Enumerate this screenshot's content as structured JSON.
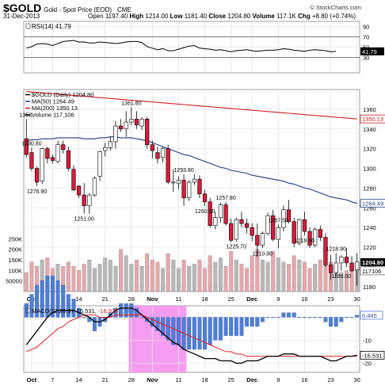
{
  "header": {
    "symbol": "$GOLD",
    "description": "Gold - Spot Price (EOD)",
    "exchange": "CME",
    "credit": "© StockCharts.com",
    "date": "31-Dec-2013",
    "open_label": "Open",
    "open": "1197.40",
    "high_label": "High",
    "high": "1214.00",
    "low_label": "Low",
    "low": "1181.40",
    "close_label": "Close",
    "close": "1204.80",
    "volume_label": "Volume",
    "volume": "117.1K",
    "chg_label": "Chg",
    "chg": "+8.80 (+0.74%)"
  },
  "colors": {
    "up_candle": "#ffffff",
    "down_candle": "#d81b3c",
    "candle_edge": "#000000",
    "ma50": "#1f3c88",
    "ma200": "#cc1f1f",
    "vol_up": "#b8b8b8",
    "vol_down": "#e6a7ad",
    "rsi_line": "#000000",
    "macd_line": "#000000",
    "signal_line": "#e02020",
    "histogram": "#4f7fd6",
    "highlight": "#f48cf0",
    "last_badge": "#000000"
  },
  "chart_data": [
    {
      "type": "line",
      "panel": "rsi",
      "legend": "RSI(14) 41.79",
      "ylim": [
        0,
        100
      ],
      "y_ticks": [
        30,
        50,
        70,
        90
      ],
      "reference_lines": [
        30,
        70
      ],
      "last_value_label": "41.79",
      "values": [
        48,
        51,
        56,
        57,
        56,
        53,
        57,
        61,
        62,
        63,
        60,
        60,
        58,
        58,
        60,
        59,
        58,
        57,
        58,
        60,
        61,
        61,
        59,
        51,
        48,
        45,
        47,
        43,
        43,
        46,
        49,
        52,
        53,
        48,
        47,
        46,
        44,
        45,
        43,
        41,
        43,
        44,
        45,
        43,
        42,
        43,
        44,
        44,
        45,
        47,
        46,
        44,
        43,
        42,
        44,
        45,
        44,
        43,
        41,
        42
      ]
    },
    {
      "type": "candlestick",
      "panel": "price",
      "legend": [
        "$GOLD (Daily) 1204.80",
        "MA(50) 1264.49",
        "MA(200) 1350.13",
        "Volume 117,106"
      ],
      "ylim": [
        1175,
        1380
      ],
      "y_ticks": [
        1180,
        1200,
        1220,
        1240,
        1260,
        1280,
        1300,
        1320,
        1340,
        1360
      ],
      "x_ticks": [
        "Oct",
        "7",
        "14",
        "21",
        "28",
        "Nov",
        "11",
        "18",
        "25",
        "Dec",
        "9",
        "16",
        "23",
        "30"
      ],
      "x_tick_index": [
        1,
        5,
        10,
        15,
        20,
        24,
        29,
        34,
        39,
        43,
        48,
        53,
        58,
        63
      ],
      "ohlc": [
        [
          1330,
          1350,
          1311,
          1314
        ],
        [
          1316,
          1321,
          1297,
          1300
        ],
        [
          1300,
          1302,
          1282,
          1286
        ],
        [
          1287,
          1321,
          1284,
          1320
        ],
        [
          1320,
          1322,
          1305,
          1310
        ],
        [
          1311,
          1314,
          1305,
          1308
        ],
        [
          1307,
          1328,
          1305,
          1324
        ],
        [
          1324,
          1328,
          1315,
          1319
        ],
        [
          1318,
          1322,
          1297,
          1300
        ],
        [
          1299,
          1303,
          1277,
          1278
        ],
        [
          1282,
          1283,
          1270,
          1273
        ],
        [
          1273,
          1285,
          1254,
          1262
        ],
        [
          1262,
          1275,
          1254,
          1273
        ],
        [
          1273,
          1292,
          1271,
          1290
        ],
        [
          1292,
          1318,
          1287,
          1317
        ],
        [
          1318,
          1326,
          1312,
          1321
        ],
        [
          1321,
          1332,
          1318,
          1327
        ],
        [
          1327,
          1348,
          1320,
          1343
        ],
        [
          1343,
          1350,
          1337,
          1340
        ],
        [
          1340,
          1358,
          1332,
          1347
        ],
        [
          1347,
          1362,
          1344,
          1350
        ],
        [
          1350,
          1358,
          1340,
          1344
        ],
        [
          1343,
          1352,
          1339,
          1350
        ],
        [
          1350,
          1352,
          1320,
          1324
        ],
        [
          1324,
          1328,
          1310,
          1318
        ],
        [
          1316,
          1322,
          1305,
          1310
        ],
        [
          1311,
          1322,
          1306,
          1320
        ],
        [
          1320,
          1324,
          1284,
          1286
        ],
        [
          1286,
          1299,
          1276,
          1286
        ],
        [
          1285,
          1292,
          1279,
          1288
        ],
        [
          1288,
          1294,
          1262,
          1270
        ],
        [
          1270,
          1288,
          1267,
          1286
        ],
        [
          1286,
          1294,
          1283,
          1289
        ],
        [
          1289,
          1293,
          1270,
          1274
        ],
        [
          1274,
          1278,
          1262,
          1266
        ],
        [
          1266,
          1270,
          1240,
          1242
        ],
        [
          1242,
          1256,
          1238,
          1250
        ],
        [
          1250,
          1265,
          1245,
          1263
        ],
        [
          1263,
          1266,
          1242,
          1244
        ],
        [
          1244,
          1249,
          1225,
          1227
        ],
        [
          1228,
          1250,
          1226,
          1248
        ],
        [
          1248,
          1256,
          1240,
          1244
        ],
        [
          1244,
          1249,
          1234,
          1240
        ],
        [
          1240,
          1244,
          1226,
          1232
        ],
        [
          1232,
          1244,
          1210,
          1222
        ],
        [
          1222,
          1236,
          1219,
          1234
        ],
        [
          1234,
          1255,
          1232,
          1252
        ],
        [
          1252,
          1258,
          1226,
          1228
        ],
        [
          1228,
          1243,
          1219,
          1240
        ],
        [
          1240,
          1262,
          1236,
          1258
        ],
        [
          1258,
          1268,
          1244,
          1246
        ],
        [
          1246,
          1250,
          1220,
          1224
        ],
        [
          1224,
          1249,
          1222,
          1248
        ],
        [
          1248,
          1256,
          1232,
          1236
        ],
        [
          1236,
          1240,
          1219,
          1222
        ],
        [
          1222,
          1240,
          1220,
          1238
        ],
        [
          1238,
          1242,
          1226,
          1230
        ],
        [
          1230,
          1234,
          1200,
          1202
        ],
        [
          1202,
          1212,
          1187,
          1194
        ],
        [
          1194,
          1214,
          1190,
          1204
        ],
        [
          1204,
          1212,
          1196,
          1210
        ],
        [
          1210,
          1219,
          1200,
          1204
        ],
        [
          1204,
          1211,
          1195,
          1196
        ],
        [
          1197,
          1214,
          1181,
          1205
        ]
      ],
      "ma50": [
        1328,
        1329,
        1329,
        1330,
        1330,
        1330,
        1331,
        1331,
        1331,
        1331,
        1331,
        1330,
        1330,
        1330,
        1331,
        1331,
        1332,
        1332,
        1331,
        1331,
        1331,
        1330,
        1329,
        1328,
        1326,
        1324,
        1322,
        1320,
        1318,
        1316,
        1314,
        1313,
        1311,
        1309,
        1307,
        1305,
        1303,
        1301,
        1300,
        1298,
        1297,
        1296,
        1295,
        1293,
        1292,
        1291,
        1290,
        1289,
        1288,
        1287,
        1285,
        1284,
        1282,
        1280,
        1279,
        1277,
        1275,
        1273,
        1271,
        1270,
        1269,
        1268,
        1266,
        1264.5
      ],
      "ma200_range": [
        1378,
        1350.13
      ],
      "volume_ylim": [
        0,
        300000
      ],
      "volume_ticks": [
        "50000",
        "100K",
        "150K",
        "200K",
        "250K"
      ],
      "volume_tick_values": [
        50000,
        100000,
        150000,
        200000,
        250000
      ],
      "volume": [
        90000,
        140000,
        120000,
        150000,
        160000,
        110000,
        130000,
        120000,
        140000,
        120000,
        100000,
        130000,
        150000,
        110000,
        130000,
        160000,
        150000,
        120000,
        200000,
        170000,
        130000,
        150000,
        120000,
        180000,
        150000,
        140000,
        110000,
        180000,
        150000,
        110000,
        150000,
        120000,
        130000,
        150000,
        110000,
        170000,
        140000,
        160000,
        120000,
        190000,
        150000,
        130000,
        110000,
        170000,
        200000,
        150000,
        140000,
        190000,
        160000,
        140000,
        130000,
        170000,
        150000,
        140000,
        110000,
        130000,
        150000,
        160000,
        140000,
        110000,
        90000,
        100000,
        120000,
        117106
      ],
      "annotations": [
        {
          "index": 0,
          "text": "1353."
        },
        {
          "index": 1,
          "text": "1330.80"
        },
        {
          "index": 2,
          "text": "1276.90"
        },
        {
          "index": 11,
          "text": "1251.00"
        },
        {
          "index": 20,
          "text": "1361.80"
        },
        {
          "index": 30,
          "text": "1293.80"
        },
        {
          "index": 34,
          "text": "1260.50"
        },
        {
          "index": 38,
          "text": "1257.80"
        },
        {
          "index": 40,
          "text": "1225.70"
        },
        {
          "index": 45,
          "text": "1210.80"
        },
        {
          "index": 48,
          "text": "1267.50"
        },
        {
          "index": 53,
          "text": "1219.50"
        },
        {
          "index": 59,
          "text": "1218.90"
        },
        {
          "index": 60,
          "text": "1186.00"
        }
      ],
      "last_labels": [
        "1204.80",
        "117106"
      ],
      "ma50_label": "1264.49",
      "ma200_label": "1350.13"
    },
    {
      "type": "line",
      "panel": "macd",
      "legend_prefix": "MACD(12,26,9)",
      "legend_macd": "-16.531",
      "legend_signal": "-16.976",
      "legend_hist": "0.445",
      "ylim": [
        -24,
        5
      ],
      "y_ticks": [
        0,
        -10,
        -20
      ],
      "x_ticks": [
        "Oct",
        "7",
        "14",
        "21",
        "28",
        "Nov",
        "11",
        "18",
        "25",
        "Dec",
        "9",
        "16",
        "23",
        "30"
      ],
      "highlight_range": [
        20,
        30
      ],
      "macd": [
        -12,
        -9,
        -6,
        -3,
        0,
        2,
        3,
        3,
        3,
        3,
        2,
        1,
        0,
        -2,
        -2,
        -1,
        1,
        3,
        4,
        4,
        4,
        3,
        1,
        -1,
        -3,
        -5,
        -7,
        -9,
        -11,
        -12,
        -14,
        -15,
        -16,
        -17,
        -18,
        -18,
        -18,
        -19,
        -19,
        -19,
        -20,
        -20,
        -19,
        -19,
        -19,
        -18,
        -17,
        -17,
        -17,
        -16,
        -16,
        -16,
        -17,
        -17,
        -17,
        -17,
        -17,
        -18,
        -19,
        -19,
        -18,
        -17,
        -17,
        -16.531
      ],
      "signal": [
        -15,
        -14,
        -13,
        -11,
        -9,
        -7,
        -5,
        -4,
        -2,
        -1,
        0,
        1,
        1,
        1,
        0,
        0,
        0,
        1,
        1,
        1,
        1,
        1,
        1,
        0,
        -1,
        -2,
        -3,
        -4,
        -5,
        -6,
        -7,
        -8,
        -9,
        -10,
        -11,
        -12,
        -13,
        -14,
        -15,
        -15,
        -16,
        -16,
        -17,
        -17,
        -17,
        -17,
        -17,
        -17,
        -17,
        -17,
        -17,
        -17,
        -17,
        -17,
        -17,
        -17,
        -17,
        -17,
        -17,
        -17,
        -17,
        -17,
        -17,
        -16.976
      ],
      "last_labels": [
        "0.445",
        "-16.531"
      ]
    }
  ]
}
